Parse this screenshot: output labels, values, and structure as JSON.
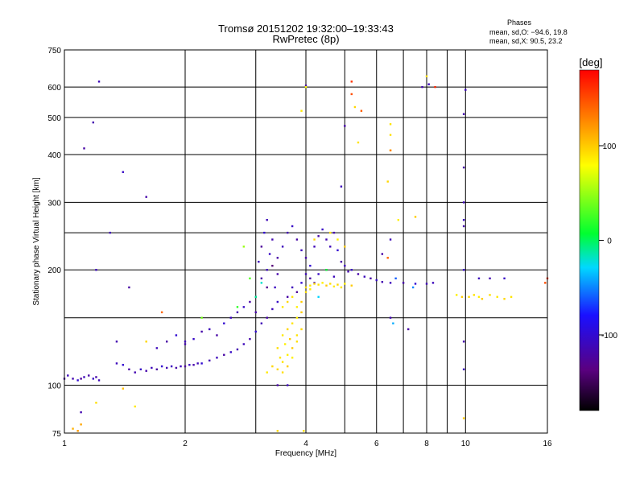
{
  "chart_data": {
    "type": "scatter",
    "title": "Tromsø 20151202 19:32:00–19:33:43",
    "subtitle": "RwPretec (8p)",
    "xlabel": "Frequency [MHz]",
    "ylabel": "Stationary phase Virtual Height [km]",
    "x_scale": "log",
    "y_scale": "log",
    "xlim": [
      1,
      16
    ],
    "ylim": [
      75,
      750
    ],
    "x_ticks": [
      1,
      2,
      4,
      6,
      8,
      10,
      16
    ],
    "x_ticks_minor": [
      3,
      5,
      7,
      9
    ],
    "y_ticks": [
      75,
      100,
      200,
      300,
      400,
      500,
      600,
      750
    ],
    "y_ticks_minor": [
      250,
      150
    ],
    "grid": true,
    "stats": {
      "heading": "Phases",
      "line1": "mean, sd,O: −94.6, 19.8",
      "line2": "mean, sd,X:  90.5, 23.2"
    },
    "colorbar": {
      "label": "[deg]",
      "range": [
        -180,
        180
      ],
      "ticks": [
        100,
        0,
        -100
      ]
    },
    "series": [
      {
        "mode": "O",
        "points": [
          [
            1.0,
            104,
            -120
          ],
          [
            1.02,
            106,
            -110
          ],
          [
            1.05,
            104,
            -115
          ],
          [
            1.08,
            103,
            -100
          ],
          [
            1.1,
            104,
            -125
          ],
          [
            1.12,
            105,
            -110
          ],
          [
            1.15,
            106,
            -120
          ],
          [
            1.18,
            104,
            -105
          ],
          [
            1.2,
            105,
            -118
          ],
          [
            1.22,
            103,
            -112
          ],
          [
            1.35,
            114,
            -110
          ],
          [
            1.4,
            113,
            -100
          ],
          [
            1.45,
            110,
            -120
          ],
          [
            1.5,
            108,
            -115
          ],
          [
            1.55,
            110,
            -105
          ],
          [
            1.6,
            109,
            -118
          ],
          [
            1.65,
            111,
            -110
          ],
          [
            1.7,
            110,
            -122
          ],
          [
            1.75,
            112,
            -100
          ],
          [
            1.8,
            111,
            -115
          ],
          [
            1.85,
            112,
            -108
          ],
          [
            1.9,
            111,
            -120
          ],
          [
            1.95,
            112,
            -110
          ],
          [
            2.0,
            112,
            -125
          ],
          [
            2.05,
            113,
            -105
          ],
          [
            2.1,
            113,
            -118
          ],
          [
            2.15,
            114,
            -112
          ],
          [
            2.2,
            114,
            -100
          ],
          [
            2.3,
            116,
            -115
          ],
          [
            2.4,
            118,
            -110
          ],
          [
            2.5,
            120,
            -120
          ],
          [
            2.6,
            122,
            -105
          ],
          [
            2.7,
            124,
            -115
          ],
          [
            2.8,
            128,
            -110
          ],
          [
            2.9,
            132,
            -118
          ],
          [
            3.0,
            138,
            -100
          ],
          [
            3.1,
            145,
            -112
          ],
          [
            3.2,
            150,
            -120
          ],
          [
            3.3,
            158,
            -110
          ],
          [
            3.4,
            165,
            -105
          ],
          [
            1.7,
            125,
            -110
          ],
          [
            1.8,
            130,
            -120
          ],
          [
            1.9,
            135,
            -100
          ],
          [
            2.0,
            128,
            -115
          ],
          [
            2.1,
            132,
            -105
          ],
          [
            2.2,
            138,
            -118
          ],
          [
            2.3,
            140,
            -110
          ],
          [
            2.4,
            135,
            -120
          ],
          [
            2.5,
            145,
            -100
          ],
          [
            2.6,
            150,
            -110
          ],
          [
            2.7,
            155,
            -115
          ],
          [
            2.8,
            160,
            -105
          ],
          [
            2.9,
            165,
            -120
          ],
          [
            3.0,
            170,
            -110
          ],
          [
            3.0,
            155,
            -118
          ],
          [
            3.05,
            210,
            -110
          ],
          [
            3.1,
            230,
            -125
          ],
          [
            3.15,
            250,
            -100
          ],
          [
            3.2,
            270,
            -112
          ],
          [
            3.1,
            190,
            -120
          ],
          [
            3.2,
            200,
            -110
          ],
          [
            3.25,
            220,
            -105
          ],
          [
            3.3,
            240,
            -115
          ],
          [
            3.35,
            180,
            -108
          ],
          [
            3.4,
            195,
            -118
          ],
          [
            3.2,
            180,
            -130
          ],
          [
            3.3,
            205,
            -140
          ],
          [
            3.4,
            215,
            -120
          ],
          [
            3.5,
            230,
            -110
          ],
          [
            3.6,
            250,
            -115
          ],
          [
            3.7,
            260,
            -105
          ],
          [
            3.8,
            240,
            -120
          ],
          [
            3.9,
            225,
            -110
          ],
          [
            4.0,
            215,
            -118
          ],
          [
            4.1,
            205,
            -100
          ],
          [
            4.2,
            230,
            -112
          ],
          [
            4.3,
            245,
            -120
          ],
          [
            4.4,
            255,
            -105
          ],
          [
            4.5,
            240,
            -115
          ],
          [
            4.6,
            230,
            -110
          ],
          [
            4.7,
            250,
            -118
          ],
          [
            4.8,
            225,
            -100
          ],
          [
            4.9,
            210,
            -120
          ],
          [
            5.0,
            205,
            -110
          ],
          [
            5.1,
            198,
            -115
          ],
          [
            5.2,
            200,
            -105
          ],
          [
            5.4,
            195,
            -118
          ],
          [
            5.6,
            192,
            -110
          ],
          [
            5.8,
            190,
            -120
          ],
          [
            6.0,
            188,
            -105
          ],
          [
            6.2,
            186,
            -115
          ],
          [
            6.5,
            185,
            -110
          ],
          [
            7.0,
            185,
            -118
          ],
          [
            7.5,
            184,
            -100
          ],
          [
            8.0,
            184,
            -112
          ],
          [
            4.1,
            190,
            -120
          ],
          [
            4.2,
            185,
            -110
          ],
          [
            4.3,
            195,
            -105
          ],
          [
            4.5,
            200,
            -115
          ],
          [
            4.7,
            192,
            -110
          ],
          [
            3.6,
            170,
            -120
          ],
          [
            3.7,
            180,
            -110
          ],
          [
            3.8,
            175,
            -125
          ],
          [
            3.9,
            185,
            -100
          ],
          [
            4.0,
            195,
            -112
          ],
          [
            1.22,
            620,
            -110
          ],
          [
            1.18,
            485,
            -115
          ],
          [
            1.12,
            415,
            -120
          ],
          [
            1.4,
            360,
            -105
          ],
          [
            1.6,
            310,
            -118
          ],
          [
            1.3,
            250,
            -112
          ],
          [
            1.2,
            200,
            -110
          ],
          [
            1.45,
            180,
            -120
          ],
          [
            1.35,
            130,
            -115
          ],
          [
            2.0,
            130,
            -110
          ],
          [
            3.4,
            100,
            -120
          ],
          [
            3.6,
            100,
            -110
          ],
          [
            1.1,
            85,
            -115
          ],
          [
            10.0,
            590,
            -110
          ],
          [
            9.9,
            510,
            -115
          ],
          [
            9.9,
            370,
            -120
          ],
          [
            9.9,
            300,
            -112
          ],
          [
            9.9,
            270,
            -110
          ],
          [
            9.9,
            260,
            -118
          ],
          [
            9.9,
            200,
            -105
          ],
          [
            5.0,
            475,
            -118
          ],
          [
            4.9,
            330,
            -110
          ],
          [
            4.0,
            605,
            -120
          ],
          [
            7.8,
            600,
            -115
          ],
          [
            8.1,
            610,
            -110
          ],
          [
            6.5,
            240,
            -112
          ],
          [
            6.2,
            220,
            -120
          ],
          [
            10.8,
            190,
            -110
          ],
          [
            11.5,
            190,
            -115
          ],
          [
            12.5,
            190,
            -105
          ],
          [
            9.9,
            130,
            -118
          ],
          [
            9.9,
            110,
            -110
          ],
          [
            6.5,
            150,
            -115
          ],
          [
            7.2,
            140,
            -120
          ],
          [
            8.3,
            185,
            -110
          ]
        ]
      },
      {
        "mode": "X",
        "points": [
          [
            3.4,
            110,
            95
          ],
          [
            3.5,
            115,
            90
          ],
          [
            3.6,
            120,
            85
          ],
          [
            3.7,
            125,
            100
          ],
          [
            3.8,
            130,
            92
          ],
          [
            3.5,
            135,
            88
          ],
          [
            3.6,
            140,
            95
          ],
          [
            3.7,
            145,
            90
          ],
          [
            3.8,
            150,
            85
          ],
          [
            3.9,
            155,
            100
          ],
          [
            3.4,
            125,
            92
          ],
          [
            3.5,
            160,
            88
          ],
          [
            3.6,
            165,
            95
          ],
          [
            3.7,
            170,
            90
          ],
          [
            3.8,
            160,
            85
          ],
          [
            3.9,
            165,
            100
          ],
          [
            4.0,
            175,
            92
          ],
          [
            4.1,
            182,
            88
          ],
          [
            4.2,
            184,
            95
          ],
          [
            4.3,
            183,
            90
          ],
          [
            4.4,
            185,
            85
          ],
          [
            4.5,
            182,
            100
          ],
          [
            4.6,
            184,
            92
          ],
          [
            4.7,
            181,
            88
          ],
          [
            4.8,
            183,
            95
          ],
          [
            4.9,
            180,
            90
          ],
          [
            5.0,
            184,
            85
          ],
          [
            5.2,
            182,
            100
          ],
          [
            4.0,
            180,
            92
          ],
          [
            4.1,
            178,
            88
          ],
          [
            3.9,
            140,
            95
          ],
          [
            3.8,
            135,
            90
          ],
          [
            3.7,
            118,
            85
          ],
          [
            3.6,
            112,
            100
          ],
          [
            3.5,
            108,
            92
          ],
          [
            3.2,
            108,
            88
          ],
          [
            3.3,
            112,
            95
          ],
          [
            3.45,
            118,
            90
          ],
          [
            3.55,
            128,
            85
          ],
          [
            3.65,
            132,
            100
          ],
          [
            10.2,
            170,
            95
          ],
          [
            10.5,
            172,
            90
          ],
          [
            10.8,
            170,
            85
          ],
          [
            11.0,
            168,
            100
          ],
          [
            11.5,
            172,
            92
          ],
          [
            12.0,
            170,
            88
          ],
          [
            12.5,
            168,
            95
          ],
          [
            13.0,
            170,
            90
          ],
          [
            9.5,
            172,
            85
          ],
          [
            9.8,
            170,
            100
          ],
          [
            6.5,
            450,
            92
          ],
          [
            6.5,
            410,
            88
          ],
          [
            6.4,
            340,
            95
          ],
          [
            6.5,
            480,
            90
          ],
          [
            6.8,
            270,
            85
          ],
          [
            7.5,
            275,
            100
          ],
          [
            8.0,
            640,
            92
          ],
          [
            3.9,
            520,
            88
          ],
          [
            4.2,
            240,
            95
          ],
          [
            4.6,
            250,
            90
          ],
          [
            4.8,
            240,
            85
          ],
          [
            5.0,
            230,
            100
          ],
          [
            1.2,
            90,
            92
          ],
          [
            1.5,
            88,
            88
          ],
          [
            1.6,
            130,
            95
          ],
          [
            5.4,
            430,
            90
          ],
          [
            5.2,
            575,
            150
          ],
          [
            5.2,
            620,
            160
          ],
          [
            5.5,
            520,
            145
          ],
          [
            8.4,
            600,
            165
          ],
          [
            6.5,
            410,
            130
          ],
          [
            1.75,
            155,
            140
          ],
          [
            16.0,
            190,
            160
          ],
          [
            15.8,
            185,
            150
          ],
          [
            6.4,
            215,
            140
          ],
          [
            1.05,
            77,
            110
          ],
          [
            1.1,
            79,
            115
          ],
          [
            1.08,
            76,
            120
          ],
          [
            3.4,
            76,
            95
          ],
          [
            3.95,
            76,
            92
          ],
          [
            9.9,
            82,
            100
          ],
          [
            5.3,
            532,
            95
          ],
          [
            1.4,
            98,
            105
          ],
          [
            4.0,
            600,
            80
          ],
          [
            2.8,
            230,
            50
          ],
          [
            2.7,
            160,
            20
          ],
          [
            2.2,
            150,
            40
          ],
          [
            2.9,
            190,
            30
          ],
          [
            3.1,
            185,
            -20
          ],
          [
            3.0,
            170,
            -10
          ],
          [
            4.5,
            200,
            10
          ],
          [
            4.3,
            170,
            -30
          ],
          [
            6.6,
            145,
            -40
          ],
          [
            6.7,
            190,
            -60
          ],
          [
            7.4,
            180,
            -50
          ]
        ]
      }
    ]
  }
}
